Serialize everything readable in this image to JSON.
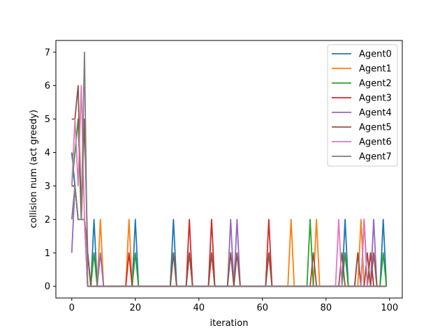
{
  "chart_data": {
    "type": "line",
    "title": "",
    "xlabel": "iteration",
    "ylabel": "collision num (act greedy)",
    "xlim": [
      -5,
      104
    ],
    "ylim": [
      -0.35,
      7.35
    ],
    "xticks": [
      0,
      20,
      40,
      60,
      80,
      100
    ],
    "yticks": [
      0,
      1,
      2,
      3,
      4,
      5,
      6,
      7
    ],
    "grid": false,
    "legend_position": "top-right",
    "series": [
      {
        "name": "Agent0",
        "color": "#1f77b4",
        "x": [
          0,
          1,
          2,
          3,
          4,
          5,
          6,
          7,
          8,
          9,
          10,
          18,
          19,
          20,
          21,
          31,
          32,
          33,
          36,
          37,
          38,
          43,
          44,
          45,
          49,
          50,
          51,
          52,
          53,
          61,
          62,
          63,
          68,
          69,
          70,
          75,
          76,
          77,
          78,
          84,
          85,
          86,
          87,
          89,
          90,
          91,
          92,
          93,
          94,
          95,
          96,
          97,
          98,
          99
        ],
        "values": [
          4,
          3,
          2,
          2,
          2,
          0,
          0,
          2,
          0,
          0,
          0,
          0,
          0,
          2,
          0,
          0,
          2,
          0,
          0,
          0,
          0,
          0,
          0,
          0,
          0,
          0,
          0,
          0,
          0,
          0,
          0,
          0,
          0,
          0,
          0,
          0,
          0,
          0,
          0,
          0,
          0,
          2,
          0,
          0,
          0,
          0,
          0,
          0,
          0,
          0,
          0,
          0,
          2,
          0
        ]
      },
      {
        "name": "Agent1",
        "color": "#ff7f0e",
        "x": [
          0,
          1,
          2,
          3,
          4,
          5,
          6,
          7,
          8,
          9,
          10,
          17,
          18,
          19,
          20,
          36,
          37,
          38,
          43,
          44,
          45,
          61,
          62,
          63,
          68,
          69,
          70,
          76,
          77,
          78,
          89,
          90,
          91,
          92,
          93,
          94,
          95,
          96,
          97,
          98,
          99
        ],
        "values": [
          3,
          3,
          2,
          2,
          2,
          1,
          0,
          0,
          0,
          2,
          0,
          0,
          2,
          0,
          0,
          0,
          1,
          0,
          0,
          1,
          0,
          0,
          1,
          0,
          0,
          2,
          0,
          0,
          2,
          0,
          0,
          0,
          2,
          0,
          0,
          0,
          0,
          0,
          0,
          0,
          0
        ]
      },
      {
        "name": "Agent2",
        "color": "#2ca02c",
        "x": [
          0,
          1,
          2,
          3,
          4,
          5,
          6,
          7,
          8,
          9,
          10,
          17,
          18,
          19,
          20,
          21,
          31,
          32,
          33,
          49,
          50,
          51,
          61,
          62,
          63,
          68,
          69,
          70,
          74,
          75,
          76,
          77,
          78,
          84,
          85,
          86,
          87,
          89,
          90,
          91,
          92,
          93,
          94,
          95,
          96,
          97,
          98,
          99
        ],
        "values": [
          3,
          4,
          5,
          2,
          2,
          0,
          0,
          1,
          0,
          0,
          0,
          0,
          0,
          0,
          1,
          0,
          0,
          1,
          0,
          0,
          0,
          0,
          0,
          0,
          0,
          0,
          0,
          0,
          0,
          2,
          0,
          0,
          0,
          0,
          0,
          1,
          0,
          0,
          0,
          0,
          2,
          0,
          0,
          0,
          0,
          0,
          1,
          0
        ]
      },
      {
        "name": "Agent3",
        "color": "#d62728",
        "x": [
          0,
          1,
          2,
          3,
          4,
          5,
          6,
          7,
          8,
          9,
          10,
          17,
          18,
          19,
          36,
          37,
          38,
          43,
          44,
          45,
          61,
          62,
          63,
          89,
          90,
          91,
          92,
          93,
          94,
          95,
          96,
          97,
          98,
          99
        ],
        "values": [
          3,
          3,
          2,
          2,
          2,
          1,
          0,
          0,
          0,
          0,
          0,
          0,
          1,
          0,
          0,
          2,
          0,
          0,
          2,
          0,
          0,
          2,
          0,
          0,
          1,
          0,
          0,
          0,
          1,
          0,
          0,
          0,
          0,
          0
        ]
      },
      {
        "name": "Agent4",
        "color": "#9467bd",
        "x": [
          0,
          1,
          2,
          3,
          4,
          5,
          6,
          7,
          8,
          9,
          10,
          49,
          50,
          51,
          52,
          53,
          61,
          62,
          63,
          89,
          90,
          91,
          92,
          93,
          94,
          95,
          96,
          97,
          98,
          99
        ],
        "values": [
          1,
          3,
          2,
          2,
          2,
          0,
          0,
          0,
          0,
          1,
          0,
          0,
          2,
          0,
          2,
          0,
          0,
          0,
          0,
          0,
          0,
          0,
          2,
          0,
          0,
          2,
          0,
          0,
          0,
          0
        ]
      },
      {
        "name": "Agent5",
        "color": "#8c564b",
        "x": [
          0,
          1,
          2,
          3,
          4,
          5,
          6,
          7,
          8,
          9,
          10,
          31,
          32,
          33,
          36,
          37,
          38,
          43,
          44,
          45,
          49,
          50,
          51,
          52,
          53,
          61,
          62,
          63,
          68,
          69,
          70,
          75,
          76,
          77,
          78,
          84,
          85,
          86,
          89,
          90,
          91,
          92,
          93,
          94,
          95,
          96,
          97,
          98,
          99
        ],
        "values": [
          5,
          5,
          6,
          2,
          5,
          1,
          0,
          0,
          0,
          0,
          0,
          0,
          1,
          0,
          0,
          1,
          0,
          0,
          1,
          0,
          0,
          1,
          0,
          1,
          0,
          0,
          1,
          0,
          0,
          0,
          0,
          0,
          1,
          0,
          0,
          0,
          1,
          0,
          0,
          1,
          0,
          0,
          1,
          0,
          1,
          0,
          0,
          0,
          0
        ]
      },
      {
        "name": "Agent6",
        "color": "#e377c2",
        "x": [
          0,
          1,
          2,
          3,
          4,
          5,
          6,
          7,
          8,
          9,
          10,
          83,
          84,
          85,
          89,
          90,
          91,
          92,
          93,
          94,
          95,
          96,
          97,
          98,
          99
        ],
        "values": [
          3,
          5,
          3,
          6,
          2,
          0,
          0,
          0,
          0,
          0,
          0,
          0,
          2,
          0,
          0,
          0,
          0,
          2,
          0,
          0,
          0,
          0,
          0,
          0,
          0
        ]
      },
      {
        "name": "Agent7",
        "color": "#7f7f7f",
        "x": [
          0,
          1,
          2,
          3,
          4,
          5,
          6,
          7,
          8,
          9,
          10,
          20,
          40,
          60,
          80,
          99
        ],
        "values": [
          2,
          3,
          2,
          2,
          7,
          0,
          0,
          0,
          0,
          0,
          0,
          0,
          0,
          0,
          0,
          0
        ]
      }
    ]
  }
}
